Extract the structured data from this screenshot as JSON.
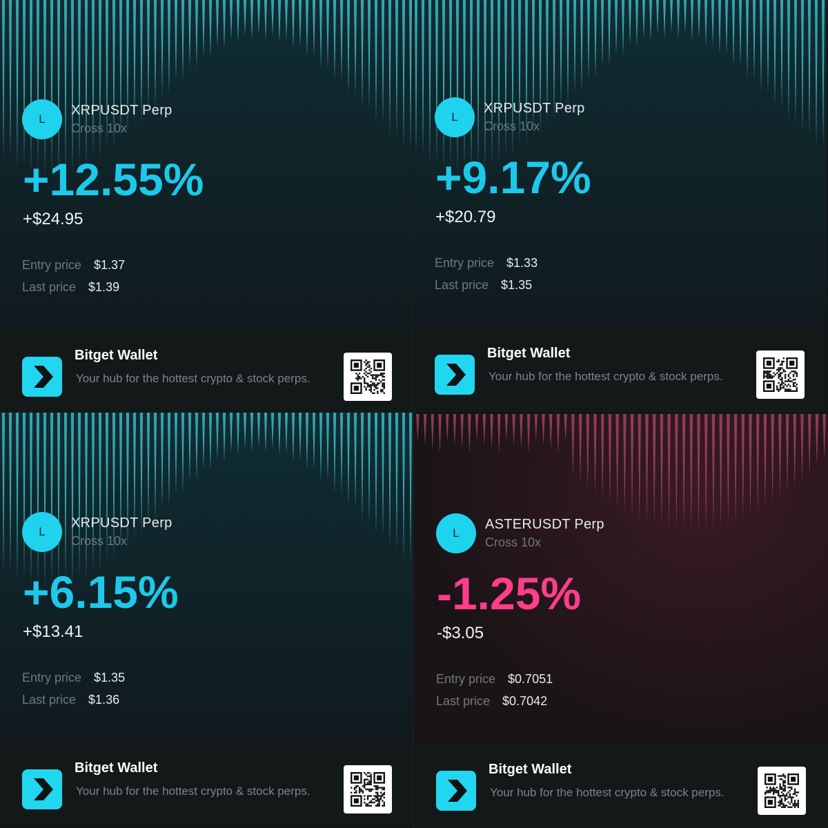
{
  "cards": [
    {
      "pair": "XRPUSDT Perp",
      "mode": "Cross 10x",
      "avatar_letter": "L",
      "pnl_percent": "+12.55%",
      "pnl_amount": "+$24.95",
      "entry_label": "Entry price",
      "entry_value": "$1.37",
      "last_label": "Last price",
      "last_value": "$1.39",
      "theme": "profit",
      "brand": "Bitget Wallet",
      "tagline": "Your hub for the hottest crypto & stock perps."
    },
    {
      "pair": "XRPUSDT Perp",
      "mode": "Cross 10x",
      "avatar_letter": "L",
      "pnl_percent": "+9.17%",
      "pnl_amount": "+$20.79",
      "entry_label": "Entry price",
      "entry_value": "$1.33",
      "last_label": "Last price",
      "last_value": "$1.35",
      "theme": "profit",
      "brand": "Bitget Wallet",
      "tagline": "Your hub for the hottest crypto & stock perps."
    },
    {
      "pair": "XRPUSDT Perp",
      "mode": "Cross 10x",
      "avatar_letter": "L",
      "pnl_percent": "+6.15%",
      "pnl_amount": "+$13.41",
      "entry_label": "Entry price",
      "entry_value": "$1.35",
      "last_label": "Last price",
      "last_value": "$1.36",
      "theme": "profit",
      "brand": "Bitget Wallet",
      "tagline": "Your hub for the hottest crypto & stock perps."
    },
    {
      "pair": "ASTERUSDT Perp",
      "mode": "Cross 10x",
      "avatar_letter": "L",
      "pnl_percent": "-1.25%",
      "pnl_amount": "-$3.05",
      "entry_label": "Entry price",
      "entry_value": "$0.7051",
      "last_label": "Last price",
      "last_value": "$0.7042",
      "theme": "loss",
      "brand": "Bitget Wallet",
      "tagline": "Your hub for the hottest crypto & stock perps."
    }
  ],
  "colors": {
    "profit": "#1ec8ea",
    "loss": "#ff3d8b",
    "profit_bars": "#3fb9c4",
    "loss_bars": "#b04a66",
    "profit_bg_top": "#0f2d33",
    "profit_bg_bottom": "#101a1e",
    "loss_bg_top": "#3a1a25",
    "loss_bg_bottom": "#1a1416",
    "logo": "#22d6f0"
  },
  "icons": {
    "avatar": "token-avatar-icon",
    "logo": "bitget-wallet-logo-icon",
    "qr": "qr-code-icon"
  }
}
